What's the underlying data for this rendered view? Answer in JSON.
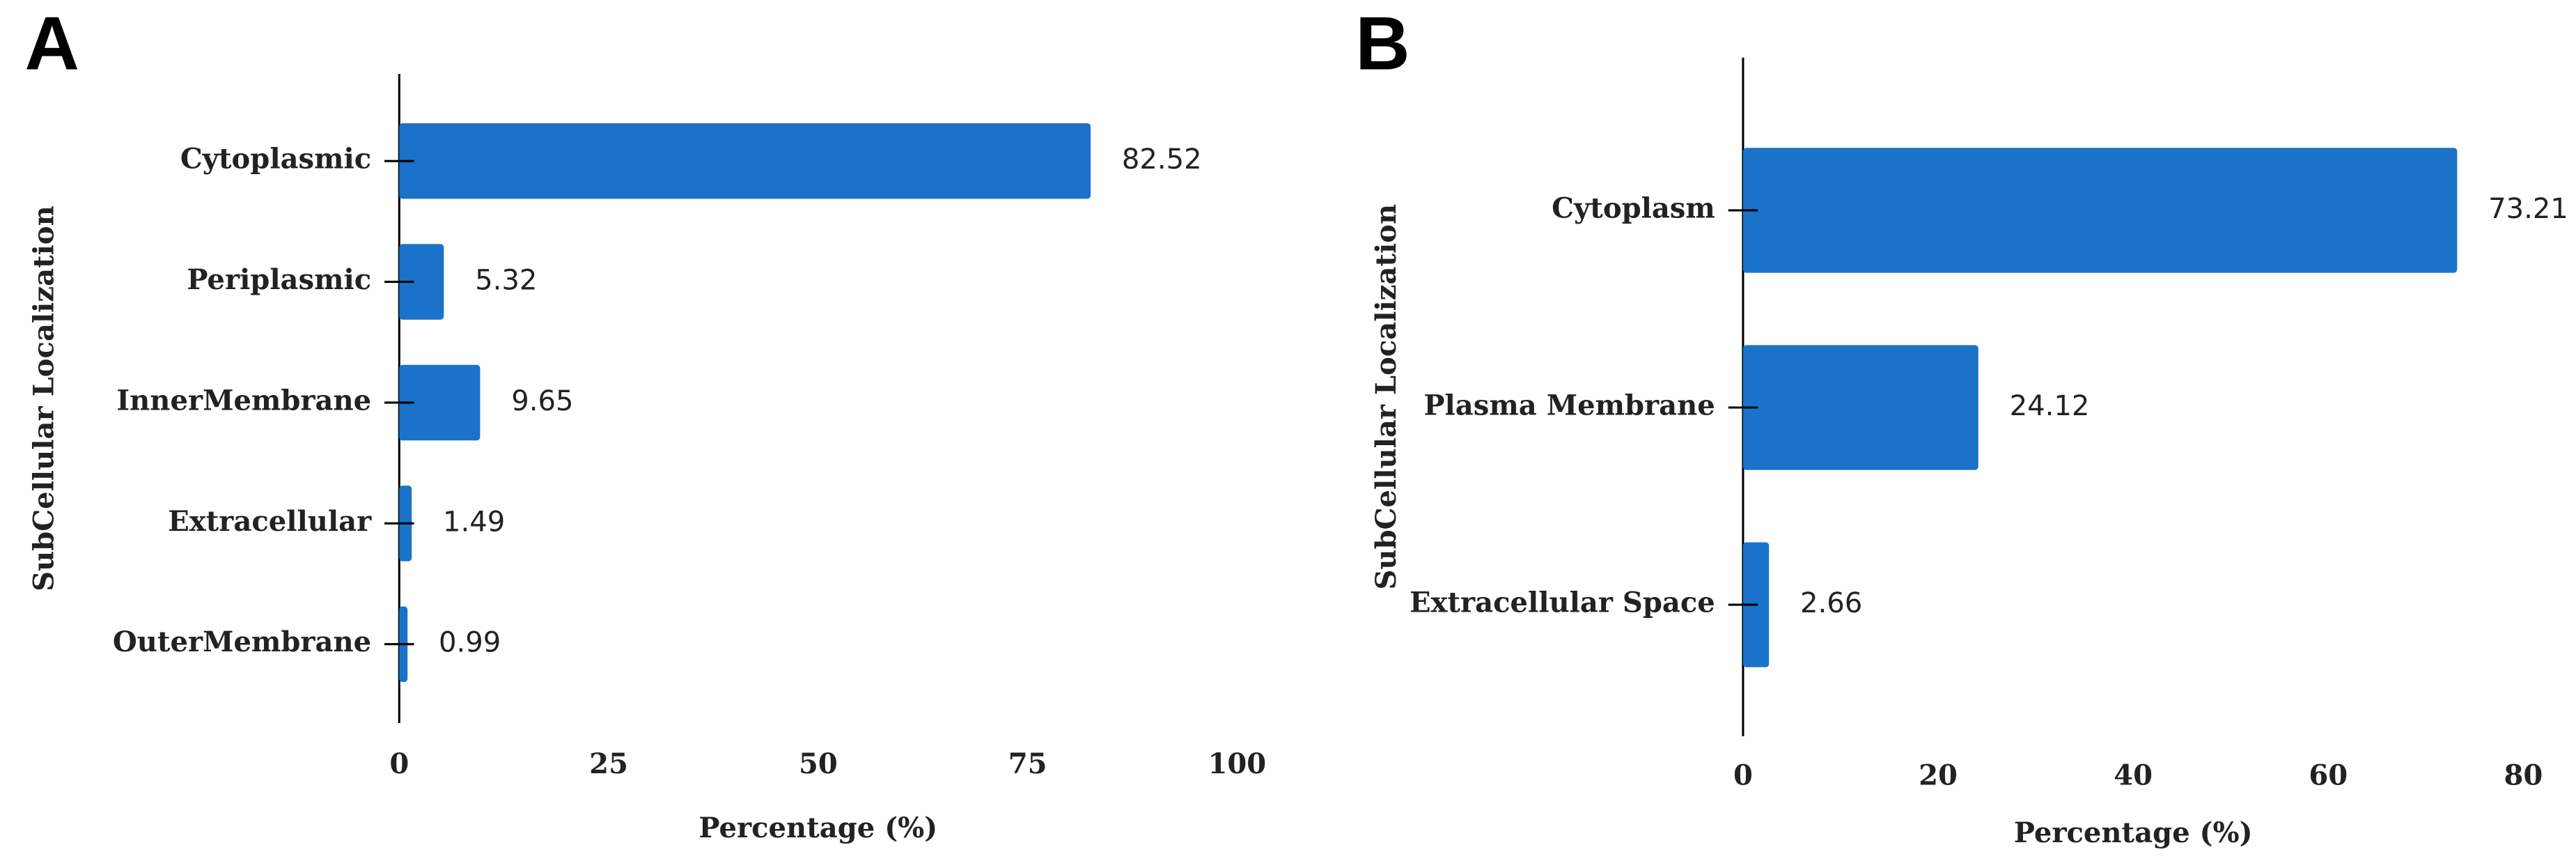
{
  "chart_data": [
    {
      "type": "hbar",
      "panel": "A",
      "xlabel": "Percentage (%)",
      "ylabel": "SubCellular Localization",
      "categories": [
        "Cytoplasmic",
        "Periplasmic",
        "InnerMembrane",
        "Extracellular",
        "OuterMembrane"
      ],
      "values": [
        82.52,
        5.32,
        9.65,
        1.49,
        0.99
      ],
      "color": "#1a73c8",
      "xlim": [
        0,
        100
      ],
      "xticks": [
        0,
        25,
        50,
        75,
        100
      ]
    },
    {
      "type": "hbar",
      "panel": "B",
      "xlabel": "Percentage (%)",
      "ylabel": "SubCellular Localization",
      "categories": [
        "Cytoplasm",
        "Plasma Membrane",
        "Extracellular Space"
      ],
      "values": [
        73.21,
        24.12,
        2.66
      ],
      "color": "#1a73c8",
      "xlim": [
        0,
        80
      ],
      "xticks": [
        0,
        20,
        40,
        60,
        80
      ]
    }
  ]
}
